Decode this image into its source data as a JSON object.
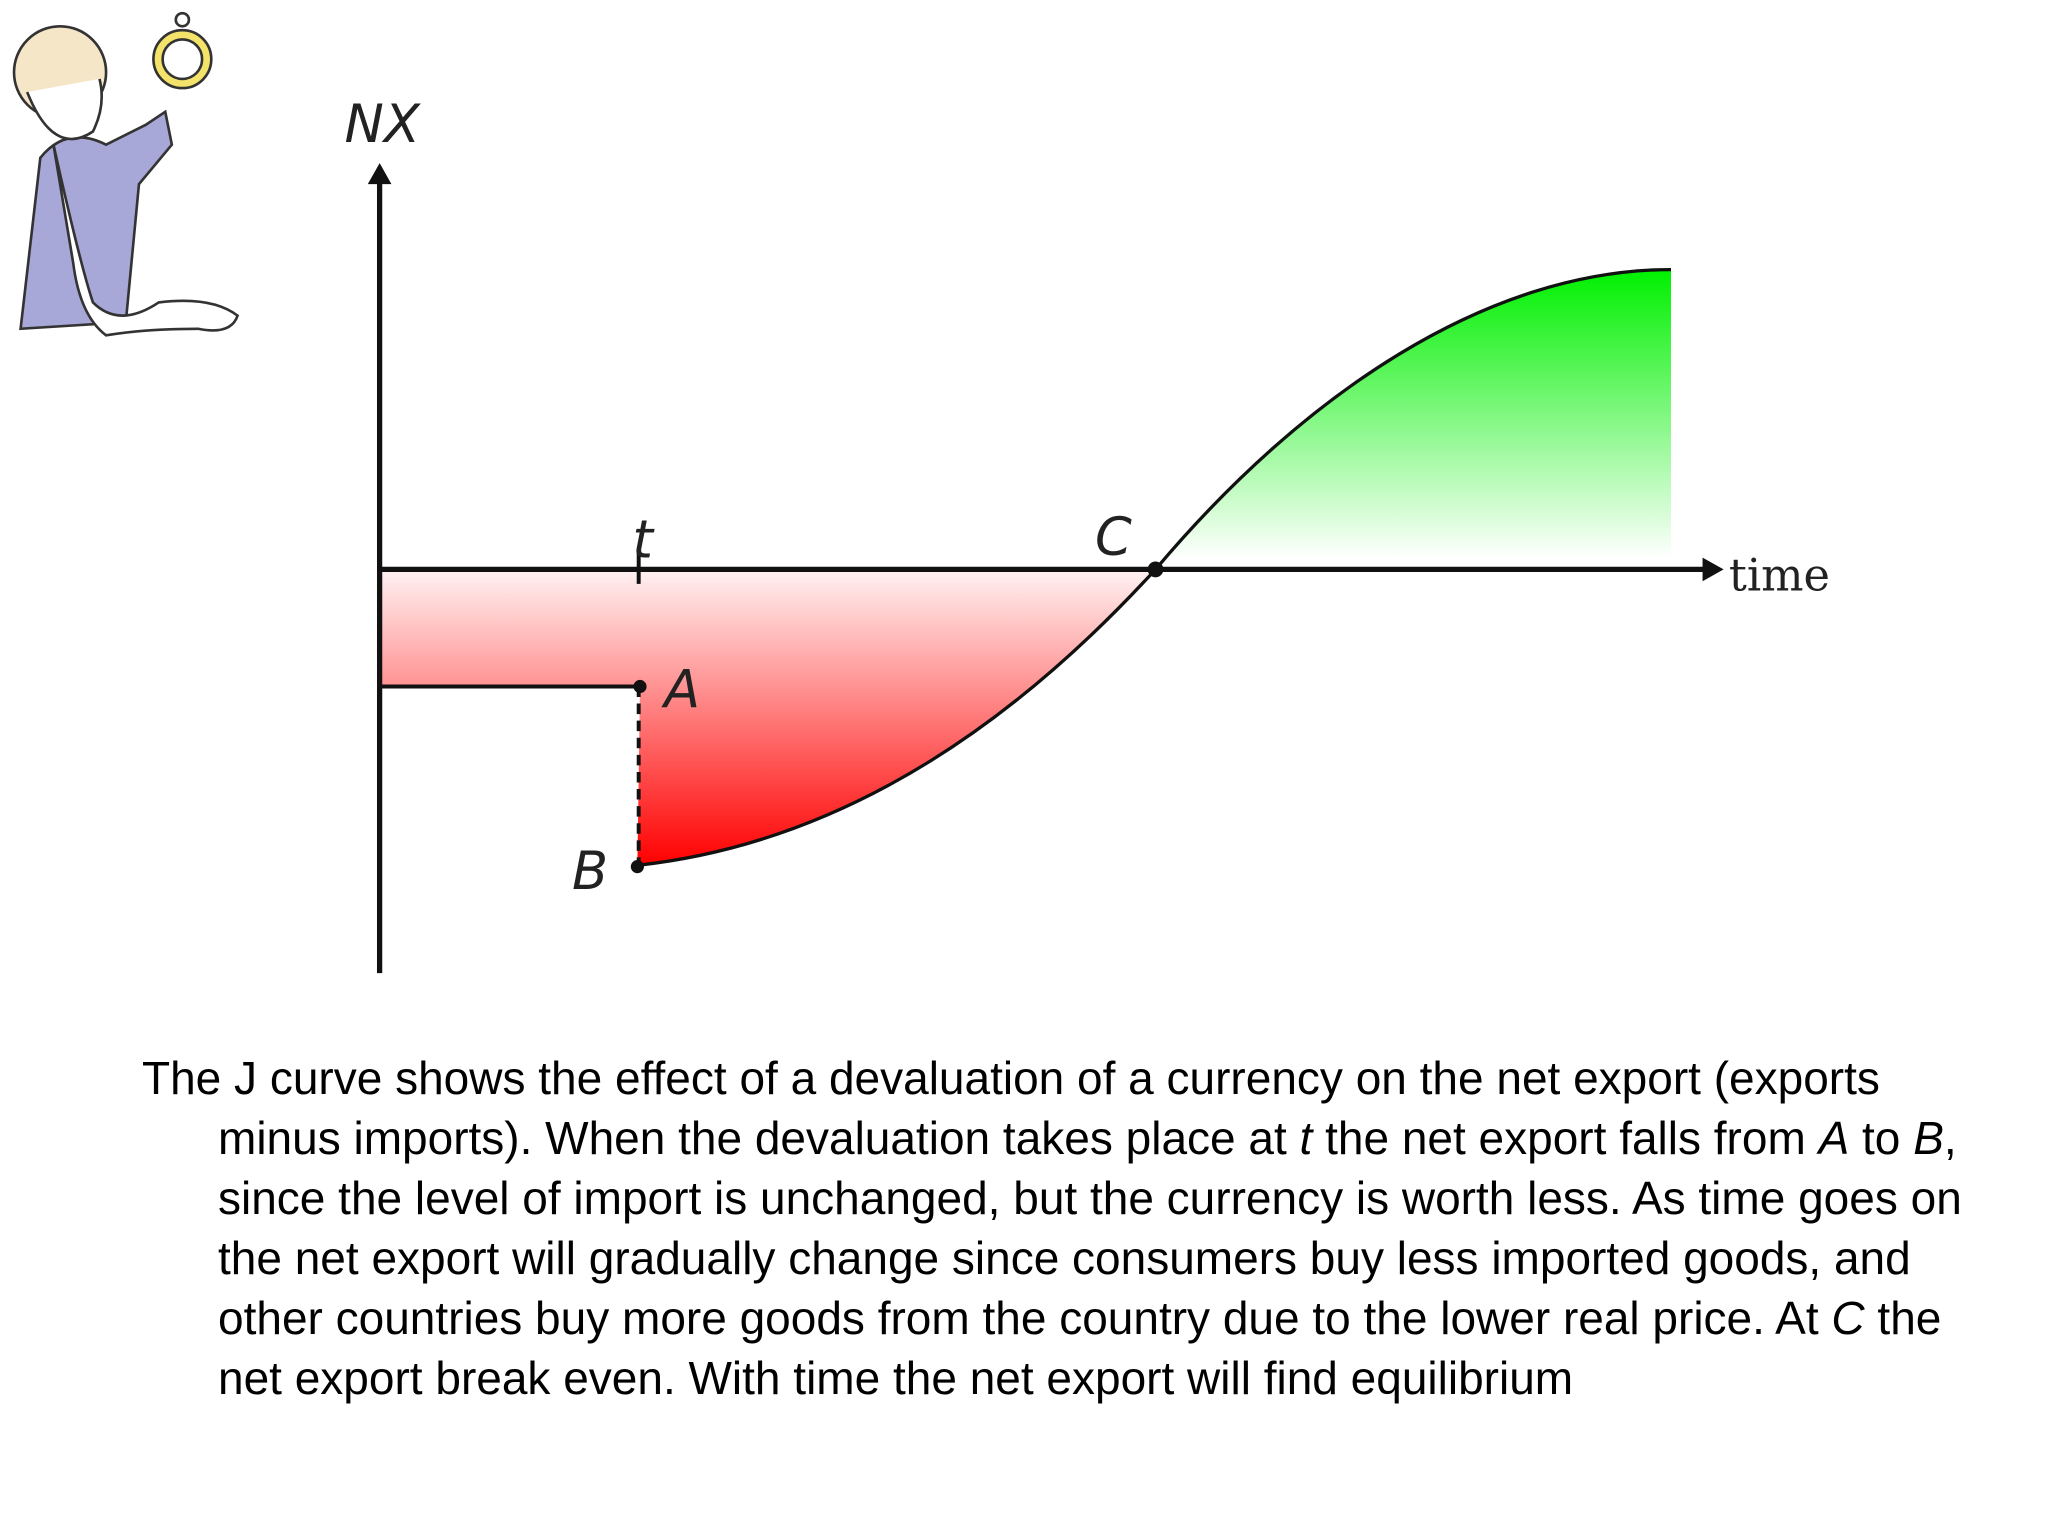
{
  "diagram": {
    "y_axis_label": "NX",
    "x_axis_label": "time",
    "points": {
      "t": "t",
      "A": "A",
      "B": "B",
      "C": "C"
    }
  },
  "caption": [
    "The J curve shows the effect of a devaluation of a currency on the net export (exports minus imports). When the devaluation takes place at ",
    "t",
    " the net export falls from ",
    "A",
    " to ",
    "B",
    ", since the level of import is unchanged, but the currency is worth less. As time goes on the net export will gradually change since consumers buy less imported goods, and other countries buy more goods from the country due to the lower real price. At ",
    "C",
    " the net export break even. With time the net export will find equilibrium"
  ]
}
